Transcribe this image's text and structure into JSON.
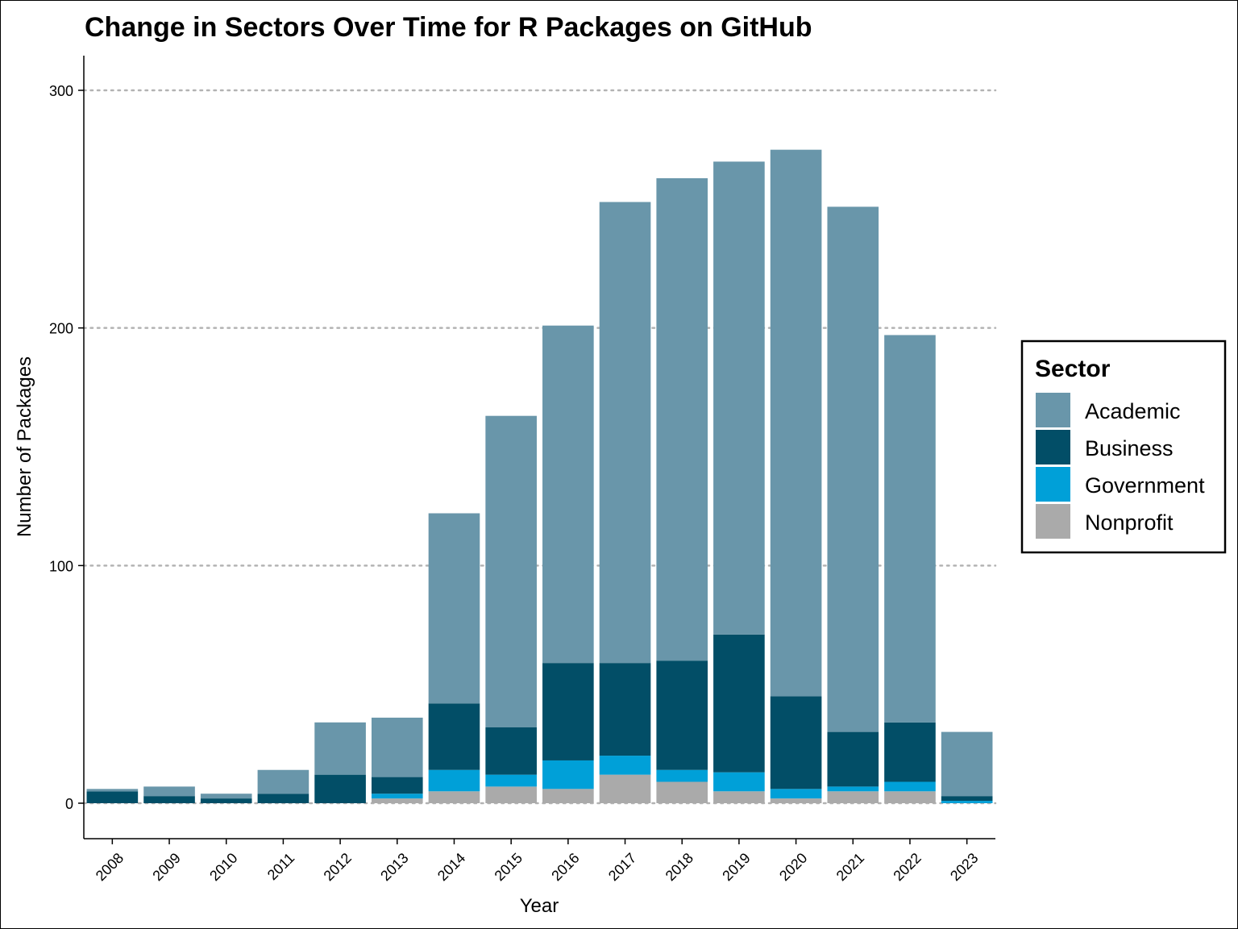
{
  "chart_data": {
    "type": "bar",
    "stacked": true,
    "title": "Change in Sectors Over Time for R Packages on GitHub",
    "xlabel": "Year",
    "ylabel": "Number of Packages",
    "ylim": [
      0,
      315
    ],
    "yticks": [
      0,
      100,
      200,
      300
    ],
    "grid": "horizontal-dotted",
    "legend_position": "right",
    "legend_title": "Sector",
    "categories": [
      "2008",
      "2009",
      "2010",
      "2011",
      "2012",
      "2013",
      "2014",
      "2015",
      "2016",
      "2017",
      "2018",
      "2019",
      "2020",
      "2021",
      "2022",
      "2023"
    ],
    "series": [
      {
        "name": "Nonprofit",
        "color": "#aaaaaa",
        "values": [
          0,
          0,
          0,
          0,
          0,
          2,
          5,
          7,
          6,
          12,
          9,
          5,
          2,
          5,
          5,
          0
        ]
      },
      {
        "name": "Government",
        "color": "#00a0d8",
        "values": [
          0,
          0,
          0,
          0,
          0,
          2,
          9,
          5,
          12,
          8,
          5,
          8,
          4,
          2,
          4,
          1
        ]
      },
      {
        "name": "Business",
        "color": "#024e67",
        "values": [
          5,
          3,
          2,
          4,
          12,
          7,
          28,
          20,
          41,
          39,
          46,
          58,
          39,
          23,
          25,
          2
        ]
      },
      {
        "name": "Academic",
        "color": "#6996aa",
        "values": [
          1,
          4,
          2,
          10,
          22,
          25,
          80,
          131,
          142,
          194,
          203,
          199,
          230,
          221,
          163,
          27
        ]
      }
    ],
    "legend_order": [
      "Academic",
      "Business",
      "Government",
      "Nonprofit"
    ]
  }
}
